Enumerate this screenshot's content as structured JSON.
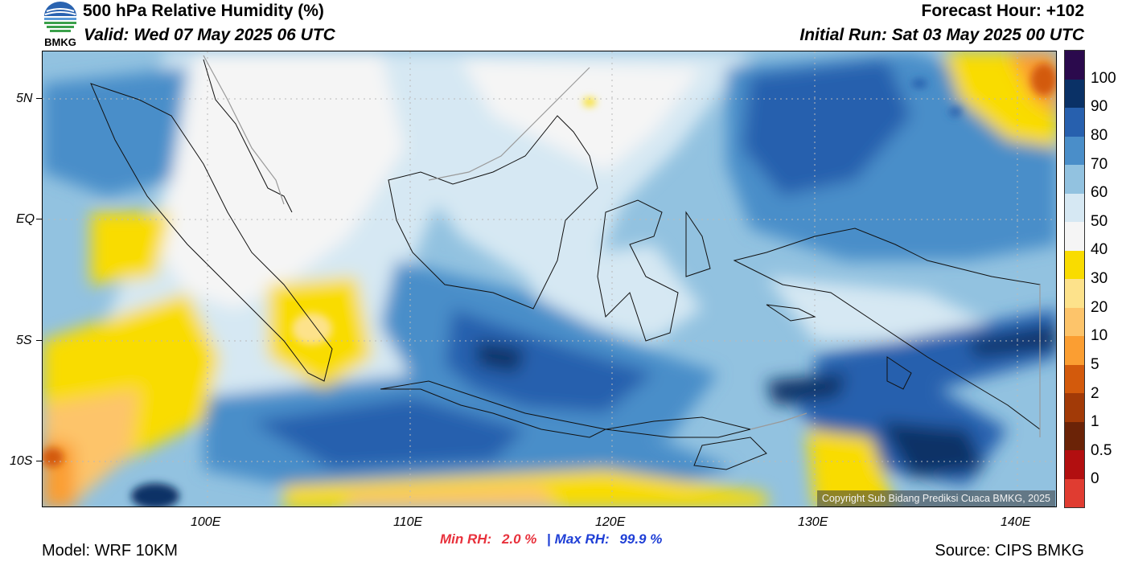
{
  "header": {
    "logo_text": "BMKG",
    "title": "500 hPa Relative Humidity (%)",
    "valid": "Valid: Wed 07 May 2025 06 UTC",
    "forecast_hour": "Forecast Hour: +102",
    "initial_run": "Initial Run: Sat 03 May 2025 00 UTC"
  },
  "map": {
    "lat_labels": [
      "5N",
      "EQ",
      "5S",
      "10S"
    ],
    "lon_labels": [
      "100E",
      "110E",
      "120E",
      "130E",
      "140E"
    ],
    "copyright": "Copyright Sub Bidang Prediksi Cuaca BMKG, 2025",
    "lon_range": [
      92,
      142.3
    ],
    "lat_range": [
      -11.9,
      7.0
    ]
  },
  "colorbar": {
    "labels": [
      "100",
      "90",
      "80",
      "70",
      "60",
      "50",
      "40",
      "30",
      "20",
      "10",
      "5",
      "2",
      "1",
      "0.5",
      "0"
    ],
    "colors": [
      "#2b0a4d",
      "#0a3166",
      "#2760ae",
      "#4a8ec9",
      "#92c2e0",
      "#d6e8f3",
      "#f5f5f5",
      "#f9dc00",
      "#fde28b",
      "#fdc46a",
      "#fb9e32",
      "#d35a0c",
      "#a23a07",
      "#6b2307",
      "#b20f10",
      "#e03c31"
    ]
  },
  "stats": {
    "min_label": "Min RH:",
    "min_value": "2.0 %",
    "separator": "|",
    "max_label": "Max RH:",
    "max_value": "99.9 %",
    "min_color": "#e8313c",
    "max_color": "#1f3fd6"
  },
  "footer": {
    "model": "Model: WRF 10KM",
    "source": "Source: CIPS BMKG"
  }
}
